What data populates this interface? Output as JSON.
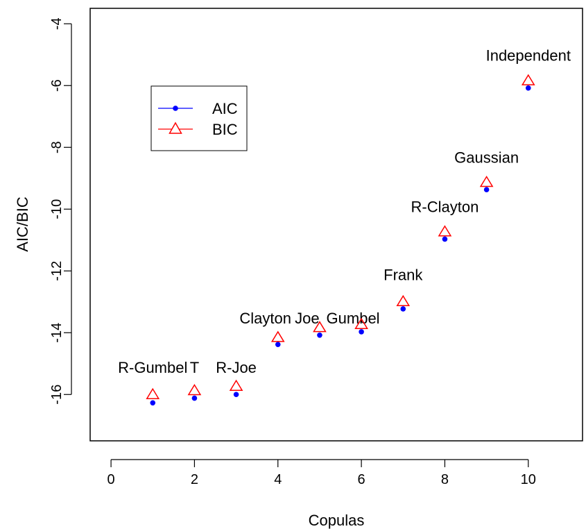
{
  "chart_data": {
    "type": "scatter",
    "title": "",
    "xlabel": "Copulas",
    "ylabel": "AIC/BIC",
    "xlim": [
      -0.5,
      11.3
    ],
    "ylim": [
      -17.5,
      -3.5
    ],
    "xticks": [
      0,
      2,
      4,
      6,
      8,
      10
    ],
    "yticks": [
      -16,
      -14,
      -12,
      -10,
      -8,
      -6,
      -4
    ],
    "grid": false,
    "legend_position": "upper-left",
    "series": [
      {
        "name": "AIC",
        "marker": "filled-circle",
        "color": "#0000ff",
        "x": [
          1,
          2,
          3,
          4,
          5,
          6,
          7,
          8,
          9,
          10
        ],
        "y": [
          -16.27,
          -16.12,
          -16.0,
          -14.38,
          -14.08,
          -13.97,
          -13.23,
          -10.97,
          -9.37,
          -6.08
        ]
      },
      {
        "name": "BIC",
        "marker": "open-triangle",
        "color": "#ff0000",
        "x": [
          1,
          2,
          3,
          4,
          5,
          6,
          7,
          8,
          9,
          10
        ],
        "y": [
          -16.0,
          -15.87,
          -15.73,
          -14.15,
          -13.83,
          -13.73,
          -12.99,
          -10.73,
          -9.13,
          -5.84
        ]
      }
    ],
    "annotations": [
      {
        "text": "R-Gumbel",
        "x": 1,
        "y": -15.3
      },
      {
        "text": "T",
        "x": 2,
        "y": -15.3
      },
      {
        "text": "R-Joe",
        "x": 3,
        "y": -15.3
      },
      {
        "text": "Clayton",
        "x": 3.7,
        "y": -13.7
      },
      {
        "text": "Joe",
        "x": 4.7,
        "y": -13.7
      },
      {
        "text": "Gumbel",
        "x": 5.8,
        "y": -13.7
      },
      {
        "text": "Frank",
        "x": 7,
        "y": -12.3
      },
      {
        "text": "R-Clayton",
        "x": 8,
        "y": -10.1
      },
      {
        "text": "Gaussian",
        "x": 9,
        "y": -8.5
      },
      {
        "text": "Independent",
        "x": 10,
        "y": -5.2
      }
    ]
  }
}
